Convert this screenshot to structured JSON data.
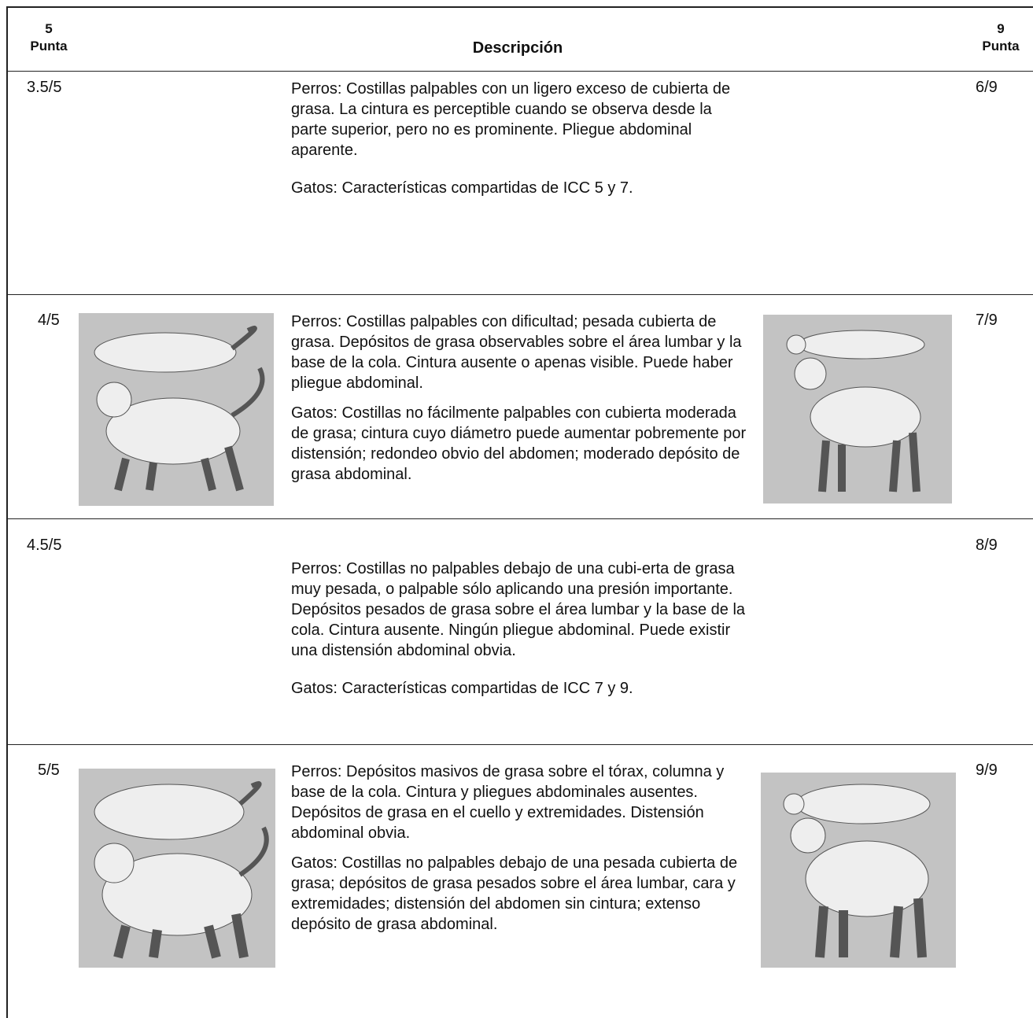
{
  "header": {
    "left_number": "5",
    "left_label": "Punta",
    "title": "Descripción",
    "right_number": "9",
    "right_label": "Punta"
  },
  "rows": [
    {
      "left": "3.5/5",
      "dogs": "Perros: Costillas palpables con un ligero exceso de cubierta de grasa. La cintura es perceptible cuando se observa desde la parte superior, pero no es prominente. Pliegue abdominal aparente.",
      "cats": "Gatos: Características compartidas de ICC 5 y 7.",
      "right": "6/9"
    },
    {
      "left": "4/5",
      "dogs": "Perros: Costillas palpables con dificultad; pesada cubierta de grasa. Depósitos de grasa observables sobre el área lumbar y la base de la cola. Cintura ausente o apenas visible. Puede haber pliegue abdominal.",
      "cats": "Gatos: Costillas no fácilmente palpables con cubierta moderada de grasa; cintura cuyo diámetro puede aumentar pobremente por distensión; redondeo obvio del abdomen; moderado depósito de grasa abdominal.",
      "right": "7/9"
    },
    {
      "left": "4.5/5",
      "dogs": "Perros: Costillas no palpables debajo de una cubi-erta de grasa muy pesada, o palpable sólo aplicando una presión importante. Depósitos pesados de grasa sobre el área lumbar y la base de la cola. Cintura ausente. Ningún pliegue abdominal. Puede existir una distensión abdominal obvia.",
      "cats": "Gatos: Características compartidas de ICC 7 y 9.",
      "right": "8/9"
    },
    {
      "left": "5/5",
      "dogs": "Perros: Depósitos masivos de grasa sobre el tórax, columna y base de la cola. Cintura y pliegues abdominales ausentes. Depósitos de grasa en el cuello y extremidades. Distensión abdominal obvia.",
      "cats": "Gatos: Costillas no palpables debajo de una pesada cubierta de grasa; depósitos de grasa pesados sobre el área lumbar, cara y extremidades; distensión del abdomen sin cintura; extenso depósito de grasa abdominal.",
      "right": "9/9"
    }
  ]
}
